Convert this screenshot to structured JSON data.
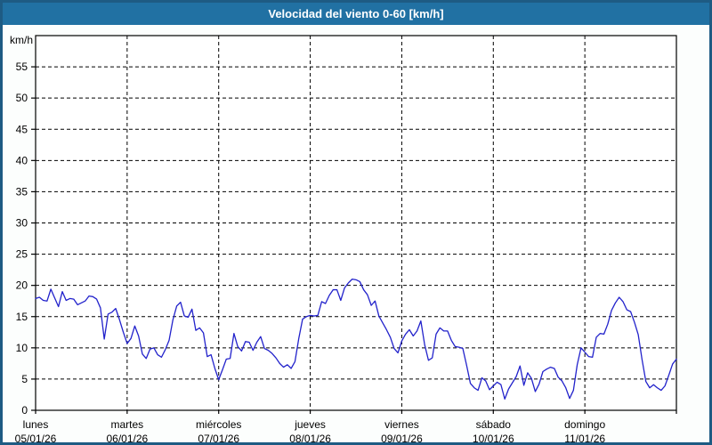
{
  "window": {
    "title": "Velocidad del viento 0-60 [km/h]"
  },
  "colors": {
    "titlebar_bg": "#2171a3",
    "titlebar_text": "#ffffff",
    "frame_border": "#1e5b83",
    "page_bg": "#fcfefd",
    "plot_bg": "#ffffff",
    "axis": "#000000",
    "grid": "#000000",
    "line": "#2222cb"
  },
  "chart_data": {
    "type": "line",
    "title": "Velocidad del viento 0-60 [km/h]",
    "ylabel": "km/h",
    "ylim": [
      0,
      60
    ],
    "y_ticks": [
      0,
      5,
      10,
      15,
      20,
      25,
      30,
      35,
      40,
      45,
      50,
      55
    ],
    "grid": "dashed",
    "legend_position": "none",
    "x_days": [
      {
        "label": "lunes",
        "date": "05/01/26"
      },
      {
        "label": "martes",
        "date": "06/01/26"
      },
      {
        "label": "miércoles",
        "date": "07/01/26"
      },
      {
        "label": "jueves",
        "date": "08/01/26"
      },
      {
        "label": "viernes",
        "date": "09/01/26"
      },
      {
        "label": "sábado",
        "date": "10/01/26"
      },
      {
        "label": "domingo",
        "date": "11/01/26"
      }
    ],
    "sampling": "one value per hour, 7 days, plus closing point",
    "series": [
      {
        "name": "velocidad-del-viento",
        "unit": "km/h",
        "color": "#2222cb",
        "values": [
          17.9,
          18.1,
          17.6,
          17.5,
          19.4,
          18.0,
          16.6,
          19.0,
          17.6,
          17.9,
          17.8,
          16.9,
          17.2,
          17.5,
          18.3,
          18.2,
          17.8,
          16.4,
          11.4,
          15.4,
          15.7,
          16.3,
          14.5,
          12.5,
          10.7,
          11.5,
          13.5,
          11.9,
          9.0,
          8.3,
          9.8,
          10.0,
          8.9,
          8.5,
          9.7,
          11.2,
          14.5,
          16.7,
          17.3,
          15.1,
          14.9,
          16.2,
          12.8,
          13.2,
          12.4,
          8.6,
          8.9,
          6.7,
          4.9,
          6.5,
          8.2,
          8.3,
          12.3,
          10.2,
          9.5,
          11.0,
          10.9,
          9.6,
          10.9,
          11.8,
          9.9,
          9.6,
          9.1,
          8.4,
          7.5,
          6.9,
          7.3,
          6.7,
          7.8,
          11.5,
          14.6,
          15.0,
          15.2,
          15.1,
          15.2,
          17.4,
          17.1,
          18.4,
          19.3,
          19.3,
          17.6,
          19.6,
          20.4,
          21.0,
          20.9,
          20.6,
          19.3,
          18.5,
          16.8,
          17.5,
          15.1,
          14.0,
          12.9,
          11.7,
          9.9,
          9.2,
          11.1,
          12.2,
          12.9,
          11.9,
          12.7,
          14.3,
          10.5,
          8.0,
          8.4,
          12.2,
          13.2,
          12.7,
          12.7,
          11.2,
          10.2,
          10.1,
          9.9,
          7.2,
          4.3,
          3.6,
          3.2,
          5.2,
          4.7,
          3.3,
          3.9,
          4.5,
          4.1,
          1.8,
          3.4,
          4.4,
          5.4,
          7.1,
          4.0,
          6.0,
          5.1,
          3.0,
          4.2,
          6.2,
          6.6,
          6.9,
          6.7,
          5.3,
          4.7,
          3.6,
          1.9,
          3.2,
          7.3,
          10.0,
          9.3,
          8.6,
          8.5,
          11.7,
          12.3,
          12.2,
          13.8,
          16.0,
          17.2,
          18.1,
          17.4,
          16.1,
          15.8,
          14.1,
          12.1,
          8.1,
          4.6,
          3.6,
          4.1,
          3.6,
          3.2,
          3.9,
          5.6,
          7.4,
          8.2
        ]
      }
    ]
  }
}
